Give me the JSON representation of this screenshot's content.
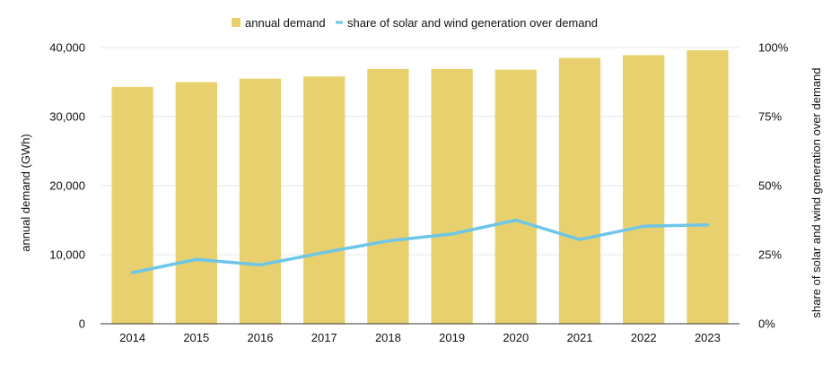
{
  "chart_data": {
    "type": "bar",
    "categories": [
      "2014",
      "2015",
      "2016",
      "2017",
      "2018",
      "2019",
      "2020",
      "2021",
      "2022",
      "2023"
    ],
    "series": [
      {
        "name": "annual demand",
        "type": "bar",
        "axis": "left",
        "color": "#e8d06e",
        "values": [
          34300,
          35000,
          35500,
          35800,
          36900,
          36900,
          36800,
          38500,
          38900,
          39600
        ]
      },
      {
        "name": "share of solar and wind generation over demand",
        "type": "line",
        "axis": "right",
        "color": "#6ec6e8",
        "values": [
          18.5,
          23.3,
          21.3,
          25.8,
          30.0,
          32.5,
          37.5,
          30.5,
          35.3,
          35.8
        ]
      }
    ],
    "ylabel": "annual demand (GWh)",
    "y2label": "share of solar and wind generation over demand",
    "ylim": [
      0,
      40000
    ],
    "y2lim": [
      0,
      100
    ],
    "yticks": [
      "0",
      "10,000",
      "20,000",
      "30,000",
      "40,000"
    ],
    "y2ticks": [
      "0%",
      "25%",
      "50%",
      "75%",
      "100%"
    ],
    "grid": true,
    "legend_position": "top-center"
  }
}
